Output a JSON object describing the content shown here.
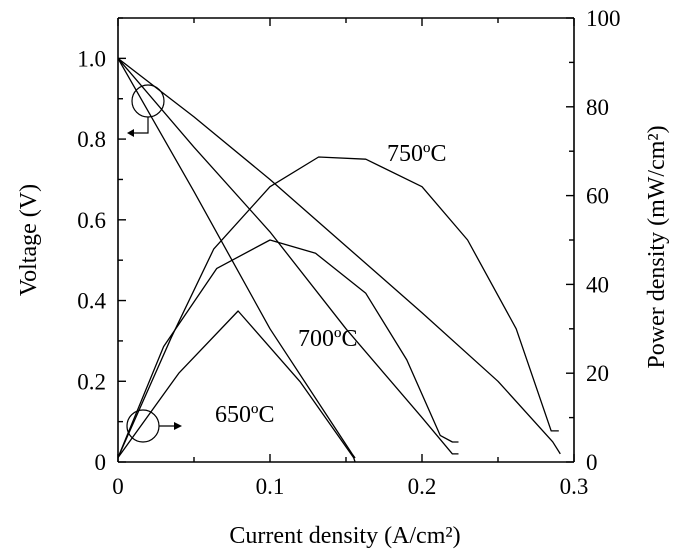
{
  "chart_data": {
    "type": "line",
    "xlabel": "Current density (A/cm²)",
    "ylabel": "Voltage (V)",
    "y2label": "Power density (mW/cm²)",
    "xlim": [
      0,
      0.3
    ],
    "ylim": [
      0,
      1.1
    ],
    "y2lim": [
      0,
      100
    ],
    "xticks": [
      "0",
      "0.1",
      "0.2",
      "0.3"
    ],
    "yticks": [
      "0",
      "0.2",
      "0.4",
      "0.6",
      "0.8",
      "1.0"
    ],
    "y2ticks": [
      "0",
      "20",
      "40",
      "60",
      "80",
      "100"
    ],
    "grid": false,
    "voltage_series": [
      {
        "name": "650ºC",
        "x": [
          0,
          0.05,
          0.1,
          0.154,
          0.156
        ],
        "y": [
          1.0,
          0.67,
          0.33,
          0.02,
          0.01
        ]
      },
      {
        "name": "700ºC",
        "x": [
          0,
          0.05,
          0.1,
          0.15,
          0.2,
          0.22,
          0.224
        ],
        "y": [
          1.0,
          0.78,
          0.57,
          0.33,
          0.11,
          0.02,
          0.02
        ]
      },
      {
        "name": "750ºC",
        "x": [
          0,
          0.05,
          0.1,
          0.15,
          0.2,
          0.25,
          0.286,
          0.291
        ],
        "y": [
          1.0,
          0.855,
          0.7,
          0.535,
          0.37,
          0.2,
          0.05,
          0.02
        ]
      }
    ],
    "power_series": [
      {
        "name": "650ºC",
        "x": [
          0,
          0.04,
          0.079,
          0.12,
          0.155,
          0.156
        ],
        "y": [
          1,
          20,
          34,
          18,
          1,
          0
        ]
      },
      {
        "name": "700ºC",
        "x": [
          0,
          0.03,
          0.065,
          0.1,
          0.13,
          0.163,
          0.19,
          0.212,
          0.22,
          0.224
        ],
        "y": [
          1,
          26,
          43.6,
          50,
          47,
          38,
          23,
          6,
          4.5,
          4.5
        ]
      },
      {
        "name": "750ºC",
        "x": [
          0,
          0.035,
          0.063,
          0.1,
          0.132,
          0.163,
          0.2,
          0.23,
          0.262,
          0.285,
          0.29
        ],
        "y": [
          1,
          28,
          48,
          62,
          68.7,
          68.2,
          62,
          50,
          30,
          7,
          7
        ]
      }
    ],
    "annotations": [
      "750ºC",
      "700ºC",
      "650ºC"
    ]
  }
}
